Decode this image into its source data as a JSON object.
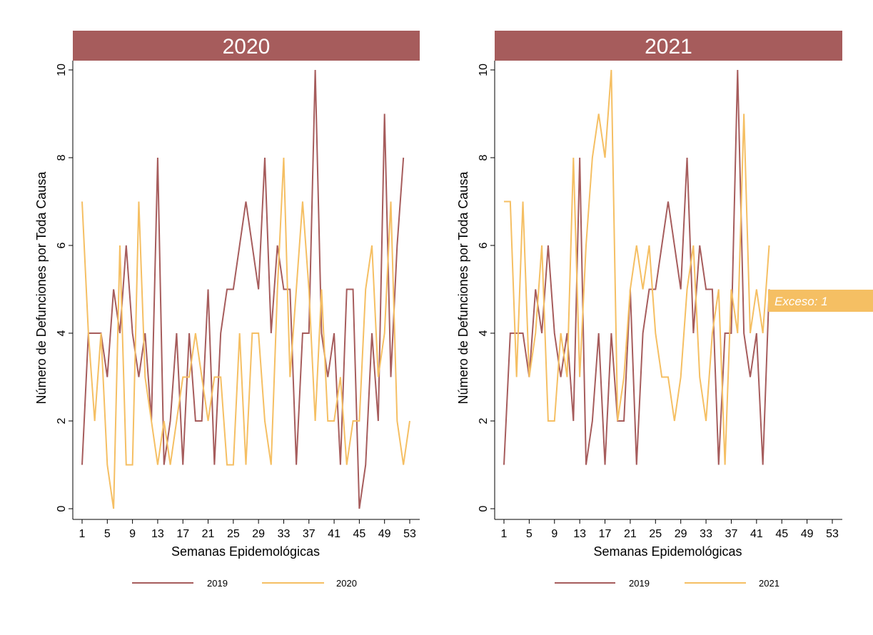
{
  "colors": {
    "strip": "#a65c5c",
    "series_2019": "#a65c5c",
    "series_current": "#f5bf63",
    "axis": "#000000"
  },
  "chart_data": [
    {
      "type": "line",
      "panel_title": "2020",
      "xlabel": "Semanas Epidemológicas",
      "ylabel": "Número de Defunciones por Toda Causa",
      "xlim": [
        1,
        53
      ],
      "ylim": [
        0,
        10
      ],
      "x_ticks": [
        1,
        5,
        9,
        13,
        17,
        21,
        25,
        29,
        33,
        37,
        41,
        45,
        49,
        53
      ],
      "y_ticks": [
        0,
        2,
        4,
        6,
        8,
        10
      ],
      "legend_position": "bottom",
      "series": [
        {
          "name": "2019",
          "color_key": "series_2019",
          "x": [
            1,
            2,
            3,
            4,
            5,
            6,
            7,
            8,
            9,
            10,
            11,
            12,
            13,
            14,
            15,
            16,
            17,
            18,
            19,
            20,
            21,
            22,
            23,
            24,
            25,
            26,
            27,
            28,
            29,
            30,
            31,
            32,
            33,
            34,
            35,
            36,
            37,
            38,
            39,
            40,
            41,
            42,
            43,
            44,
            45,
            46,
            47,
            48,
            49,
            50,
            51,
            52
          ],
          "y": [
            1,
            4,
            4,
            4,
            3,
            5,
            4,
            6,
            4,
            3,
            4,
            2,
            8,
            1,
            2,
            4,
            1,
            4,
            2,
            2,
            5,
            1,
            4,
            5,
            5,
            6,
            7,
            6,
            5,
            8,
            4,
            6,
            5,
            5,
            1,
            4,
            4,
            10,
            4,
            3,
            4,
            1,
            5,
            5,
            0,
            1,
            4,
            2,
            9,
            3,
            6,
            8
          ]
        },
        {
          "name": "2020",
          "color_key": "series_current",
          "x": [
            1,
            2,
            3,
            4,
            5,
            6,
            7,
            8,
            9,
            10,
            11,
            12,
            13,
            14,
            15,
            16,
            17,
            18,
            19,
            20,
            21,
            22,
            23,
            24,
            25,
            26,
            27,
            28,
            29,
            30,
            31,
            32,
            33,
            34,
            35,
            36,
            37,
            38,
            39,
            40,
            41,
            42,
            43,
            44,
            45,
            46,
            47,
            48,
            49,
            50,
            51,
            52,
            53
          ],
          "y": [
            7,
            4,
            2,
            4,
            1,
            0,
            6,
            1,
            1,
            7,
            3,
            2,
            1,
            2,
            1,
            2,
            3,
            3,
            4,
            3,
            2,
            3,
            3,
            1,
            1,
            4,
            1,
            4,
            4,
            2,
            1,
            5,
            8,
            3,
            5,
            7,
            5,
            2,
            5,
            2,
            2,
            3,
            1,
            2,
            2,
            5,
            6,
            3,
            4,
            7,
            2,
            1,
            2
          ]
        }
      ]
    },
    {
      "type": "line",
      "panel_title": "2021",
      "xlabel": "Semanas Epidemológicas",
      "ylabel": "Número de Defunciones por Toda Causa",
      "xlim": [
        1,
        53
      ],
      "ylim": [
        0,
        10
      ],
      "x_ticks": [
        1,
        5,
        9,
        13,
        17,
        21,
        25,
        29,
        33,
        37,
        41,
        45,
        49,
        53
      ],
      "y_ticks": [
        0,
        2,
        4,
        6,
        8,
        10
      ],
      "legend_position": "bottom",
      "annotation": {
        "text": "Exceso: 1",
        "color_key": "series_current"
      },
      "series": [
        {
          "name": "2019",
          "color_key": "series_2019",
          "x": [
            1,
            2,
            3,
            4,
            5,
            6,
            7,
            8,
            9,
            10,
            11,
            12,
            13,
            14,
            15,
            16,
            17,
            18,
            19,
            20,
            21,
            22,
            23,
            24,
            25,
            26,
            27,
            28,
            29,
            30,
            31,
            32,
            33,
            34,
            35,
            36,
            37,
            38,
            39,
            40,
            41,
            42,
            43
          ],
          "y": [
            1,
            4,
            4,
            4,
            3,
            5,
            4,
            6,
            4,
            3,
            4,
            2,
            8,
            1,
            2,
            4,
            1,
            4,
            2,
            2,
            5,
            1,
            4,
            5,
            5,
            6,
            7,
            6,
            5,
            8,
            4,
            6,
            5,
            5,
            1,
            4,
            4,
            10,
            4,
            3,
            4,
            1,
            5
          ]
        },
        {
          "name": "2021",
          "color_key": "series_current",
          "x": [
            1,
            2,
            3,
            4,
            5,
            6,
            7,
            8,
            9,
            10,
            11,
            12,
            13,
            14,
            15,
            16,
            17,
            18,
            19,
            20,
            21,
            22,
            23,
            24,
            25,
            26,
            27,
            28,
            29,
            30,
            31,
            32,
            33,
            34,
            35,
            36,
            37,
            38,
            39,
            40,
            41,
            42,
            43
          ],
          "y": [
            7,
            7,
            3,
            7,
            3,
            4,
            6,
            2,
            2,
            4,
            3,
            8,
            3,
            6,
            8,
            9,
            8,
            10,
            2,
            3,
            5,
            6,
            5,
            6,
            4,
            3,
            3,
            2,
            3,
            5,
            6,
            3,
            2,
            4,
            5,
            1,
            5,
            4,
            9,
            4,
            5,
            4,
            6
          ]
        }
      ]
    }
  ]
}
